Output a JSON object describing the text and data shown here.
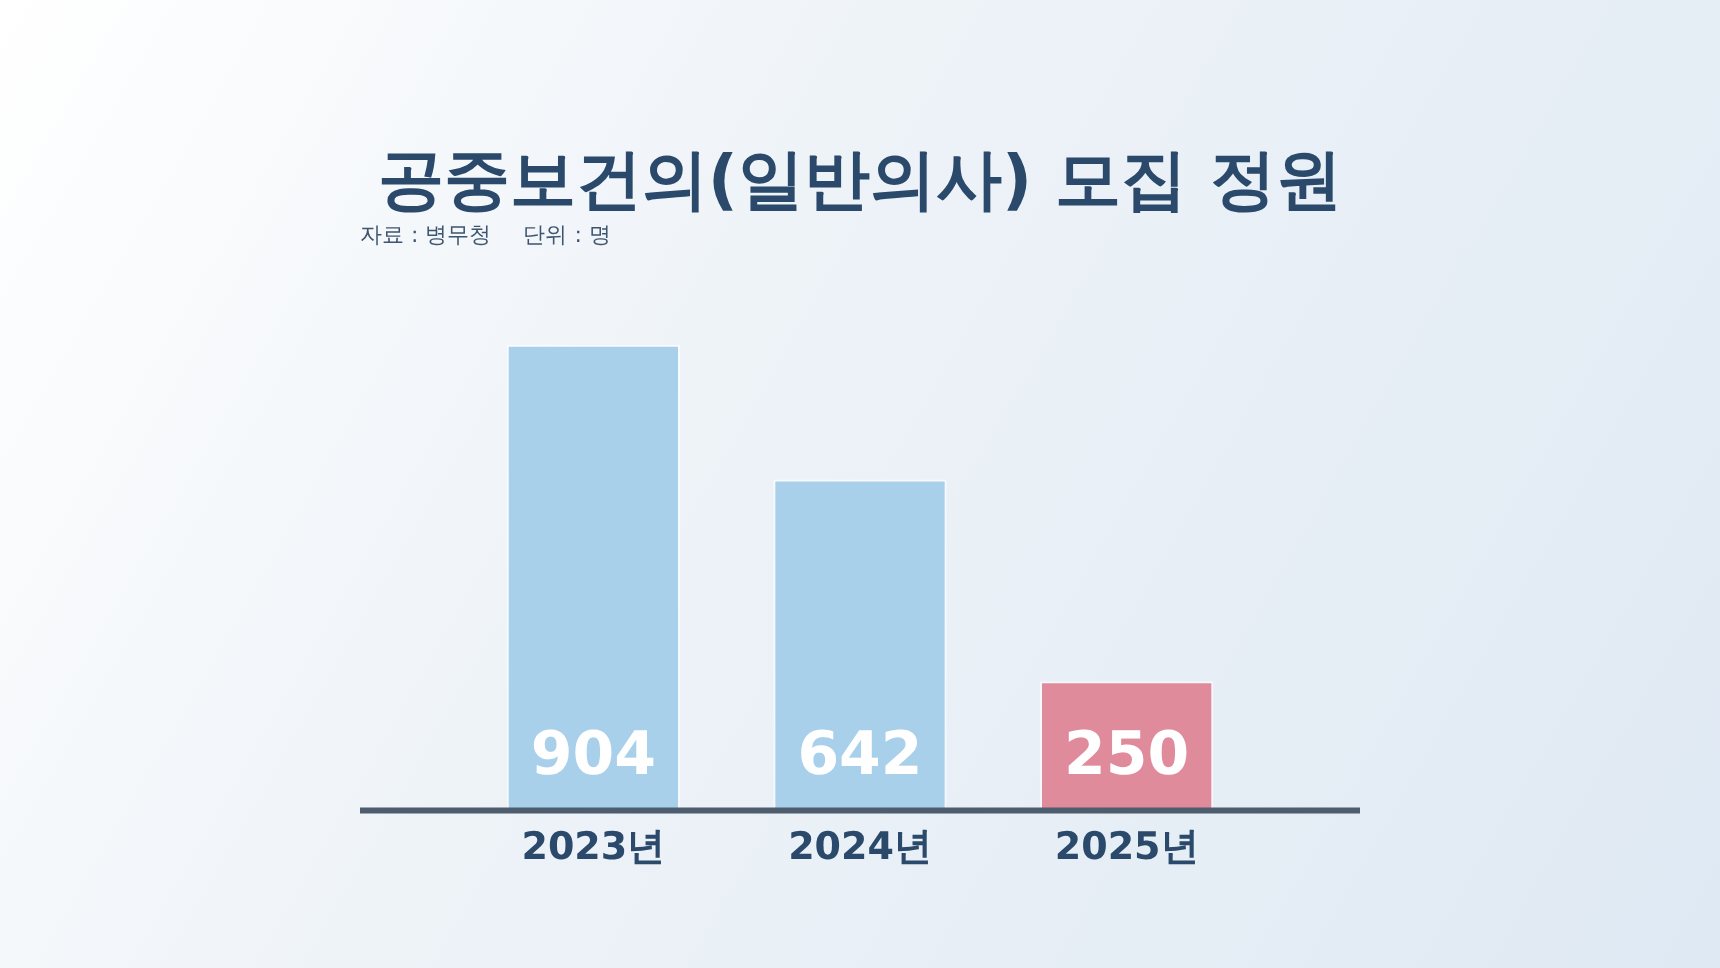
{
  "chart_data": {
    "type": "bar",
    "title": "공중보건의(일반의사) 모집 정원",
    "annotations": [
      "자료 : 병무청",
      "단위 : 명"
    ],
    "categories": [
      "2023년",
      "2024년",
      "2025년"
    ],
    "values": [
      904,
      642,
      250
    ],
    "colors": [
      "#a9d0ea",
      "#a9d0ea",
      "#e08b9c"
    ],
    "data_labels": true,
    "grid": false,
    "legend": false
  }
}
